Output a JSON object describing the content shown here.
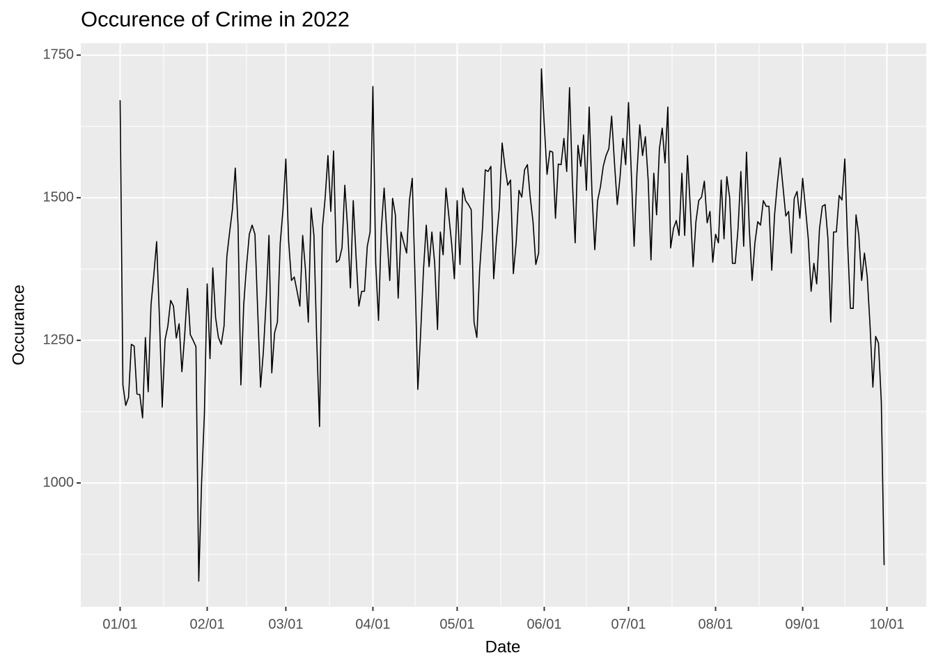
{
  "chart_data": {
    "type": "line",
    "title": "Occurence of Crime in 2022",
    "x_label": "Date",
    "y_label": "Occurance",
    "x": [
      "01/01",
      "01/02",
      "01/03",
      "01/04",
      "01/05",
      "01/06",
      "01/07",
      "01/08",
      "01/09",
      "01/10",
      "01/11",
      "01/12",
      "01/13",
      "01/14",
      "01/15",
      "01/16",
      "01/17",
      "01/18",
      "01/19",
      "01/20",
      "01/21",
      "01/22",
      "01/23",
      "01/24",
      "01/25",
      "01/26",
      "01/27",
      "01/28",
      "01/29",
      "01/30",
      "01/31",
      "02/01",
      "02/02",
      "02/03",
      "02/04",
      "02/05",
      "02/06",
      "02/07",
      "02/08",
      "02/09",
      "02/10",
      "02/11",
      "02/12",
      "02/13",
      "02/14",
      "02/15",
      "02/16",
      "02/17",
      "02/18",
      "02/19",
      "02/20",
      "02/21",
      "02/22",
      "02/23",
      "02/24",
      "02/25",
      "02/26",
      "02/27",
      "02/28",
      "03/01",
      "03/02",
      "03/03",
      "03/04",
      "03/05",
      "03/06",
      "03/07",
      "03/08",
      "03/09",
      "03/10",
      "03/11",
      "03/12",
      "03/13",
      "03/14",
      "03/15",
      "03/16",
      "03/17",
      "03/18",
      "03/19",
      "03/20",
      "03/21",
      "03/22",
      "03/23",
      "03/24",
      "03/25",
      "03/26",
      "03/27",
      "03/28",
      "03/29",
      "03/30",
      "03/31",
      "04/01",
      "04/02",
      "04/03",
      "04/04",
      "04/05",
      "04/06",
      "04/07",
      "04/08",
      "04/09",
      "04/10",
      "04/11",
      "04/12",
      "04/13",
      "04/14",
      "04/15",
      "04/16",
      "04/17",
      "04/18",
      "04/19",
      "04/20",
      "04/21",
      "04/22",
      "04/23",
      "04/24",
      "04/25",
      "04/26",
      "04/27",
      "04/28",
      "04/29",
      "04/30",
      "05/01",
      "05/02",
      "05/03",
      "05/04",
      "05/05",
      "05/06",
      "05/07",
      "05/08",
      "05/09",
      "05/10",
      "05/11",
      "05/12",
      "05/13",
      "05/14",
      "05/15",
      "05/16",
      "05/17",
      "05/18",
      "05/19",
      "05/20",
      "05/21",
      "05/22",
      "05/23",
      "05/24",
      "05/25",
      "05/26",
      "05/27",
      "05/28",
      "05/29",
      "05/30",
      "05/31",
      "06/01",
      "06/02",
      "06/03",
      "06/04",
      "06/05",
      "06/06",
      "06/07",
      "06/08",
      "06/09",
      "06/10",
      "06/11",
      "06/12",
      "06/13",
      "06/14",
      "06/15",
      "06/16",
      "06/17",
      "06/18",
      "06/19",
      "06/20",
      "06/21",
      "06/22",
      "06/23",
      "06/24",
      "06/25",
      "06/26",
      "06/27",
      "06/28",
      "06/29",
      "06/30",
      "07/01",
      "07/02",
      "07/03",
      "07/04",
      "07/05",
      "07/06",
      "07/07",
      "07/08",
      "07/09",
      "07/10",
      "07/11",
      "07/12",
      "07/13",
      "07/14",
      "07/15",
      "07/16",
      "07/17",
      "07/18",
      "07/19",
      "07/20",
      "07/21",
      "07/22",
      "07/23",
      "07/24",
      "07/25",
      "07/26",
      "07/27",
      "07/28",
      "07/29",
      "07/30",
      "07/31",
      "08/01",
      "08/02",
      "08/03",
      "08/04",
      "08/05",
      "08/06",
      "08/07",
      "08/08",
      "08/09",
      "08/10",
      "08/11",
      "08/12",
      "08/13",
      "08/14",
      "08/15",
      "08/16",
      "08/17",
      "08/18",
      "08/19",
      "08/20",
      "08/21",
      "08/22",
      "08/23",
      "08/24",
      "08/25",
      "08/26",
      "08/27",
      "08/28",
      "08/29",
      "08/30",
      "08/31",
      "09/01",
      "09/02",
      "09/03",
      "09/04",
      "09/05",
      "09/06",
      "09/07",
      "09/08",
      "09/09",
      "09/10",
      "09/11",
      "09/12",
      "09/13",
      "09/14",
      "09/15",
      "09/16",
      "09/17",
      "09/18",
      "09/19",
      "09/20",
      "09/21",
      "09/22",
      "09/23",
      "09/24",
      "09/25",
      "09/26",
      "09/27",
      "09/28",
      "09/29",
      "09/30"
    ],
    "series": [
      {
        "color": "#000000",
        "values": [
          1671,
          1172,
          1136,
          1150,
          1243,
          1240,
          1156,
          1155,
          1114,
          1255,
          1160,
          1312,
          1365,
          1423,
          1290,
          1133,
          1251,
          1275,
          1320,
          1310,
          1254,
          1279,
          1195,
          1260,
          1341,
          1260,
          1250,
          1239,
          828,
          1000,
          1120,
          1349,
          1218,
          1377,
          1290,
          1255,
          1243,
          1275,
          1397,
          1440,
          1480,
          1552,
          1450,
          1172,
          1312,
          1380,
          1436,
          1452,
          1436,
          1300,
          1168,
          1230,
          1320,
          1434,
          1193,
          1263,
          1282,
          1420,
          1480,
          1568,
          1424,
          1355,
          1361,
          1336,
          1310,
          1434,
          1373,
          1282,
          1482,
          1434,
          1250,
          1099,
          1446,
          1500,
          1574,
          1476,
          1582,
          1387,
          1391,
          1412,
          1522,
          1446,
          1342,
          1495,
          1397,
          1310,
          1336,
          1336,
          1415,
          1440,
          1695,
          1385,
          1285,
          1446,
          1517,
          1434,
          1355,
          1499,
          1470,
          1324,
          1440,
          1421,
          1403,
          1495,
          1534,
          1361,
          1164,
          1263,
          1373,
          1452,
          1379,
          1440,
          1385,
          1269,
          1440,
          1400,
          1517,
          1470,
          1421,
          1358,
          1495,
          1383,
          1517,
          1495,
          1488,
          1479,
          1282,
          1255,
          1373,
          1446,
          1549,
          1546,
          1555,
          1358,
          1428,
          1482,
          1596,
          1555,
          1522,
          1531,
          1367,
          1421,
          1513,
          1501,
          1549,
          1558,
          1501,
          1458,
          1383,
          1403,
          1726,
          1628,
          1541,
          1582,
          1580,
          1464,
          1559,
          1558,
          1604,
          1546,
          1693,
          1531,
          1421,
          1592,
          1555,
          1610,
          1513,
          1659,
          1507,
          1409,
          1495,
          1519,
          1555,
          1574,
          1586,
          1643,
          1561,
          1488,
          1537,
          1604,
          1558,
          1667,
          1543,
          1415,
          1543,
          1628,
          1574,
          1607,
          1531,
          1391,
          1543,
          1470,
          1586,
          1622,
          1561,
          1659,
          1412,
          1446,
          1460,
          1434,
          1543,
          1434,
          1574,
          1482,
          1379,
          1458,
          1495,
          1501,
          1529,
          1456,
          1476,
          1387,
          1436,
          1421,
          1531,
          1428,
          1537,
          1501,
          1385,
          1385,
          1446,
          1546,
          1415,
          1580,
          1446,
          1355,
          1421,
          1458,
          1452,
          1495,
          1485,
          1485,
          1373,
          1470,
          1525,
          1570,
          1519,
          1468,
          1476,
          1403,
          1499,
          1511,
          1464,
          1534,
          1482,
          1428,
          1336,
          1385,
          1349,
          1446,
          1485,
          1488,
          1428,
          1282,
          1440,
          1440,
          1504,
          1496,
          1568,
          1421,
          1306,
          1306,
          1470,
          1434,
          1355,
          1403,
          1361,
          1275,
          1168,
          1257,
          1245,
          1142,
          856
        ]
      }
    ],
    "xlim": [
      "12/18",
      "10/15"
    ],
    "xticks": [
      "01/01",
      "02/01",
      "03/01",
      "04/01",
      "05/01",
      "06/01",
      "07/01",
      "08/01",
      "09/01",
      "10/01"
    ],
    "ylim": [
      783,
      1771
    ],
    "yticks": [
      1000,
      1250,
      1500,
      1750
    ],
    "grid": true
  }
}
